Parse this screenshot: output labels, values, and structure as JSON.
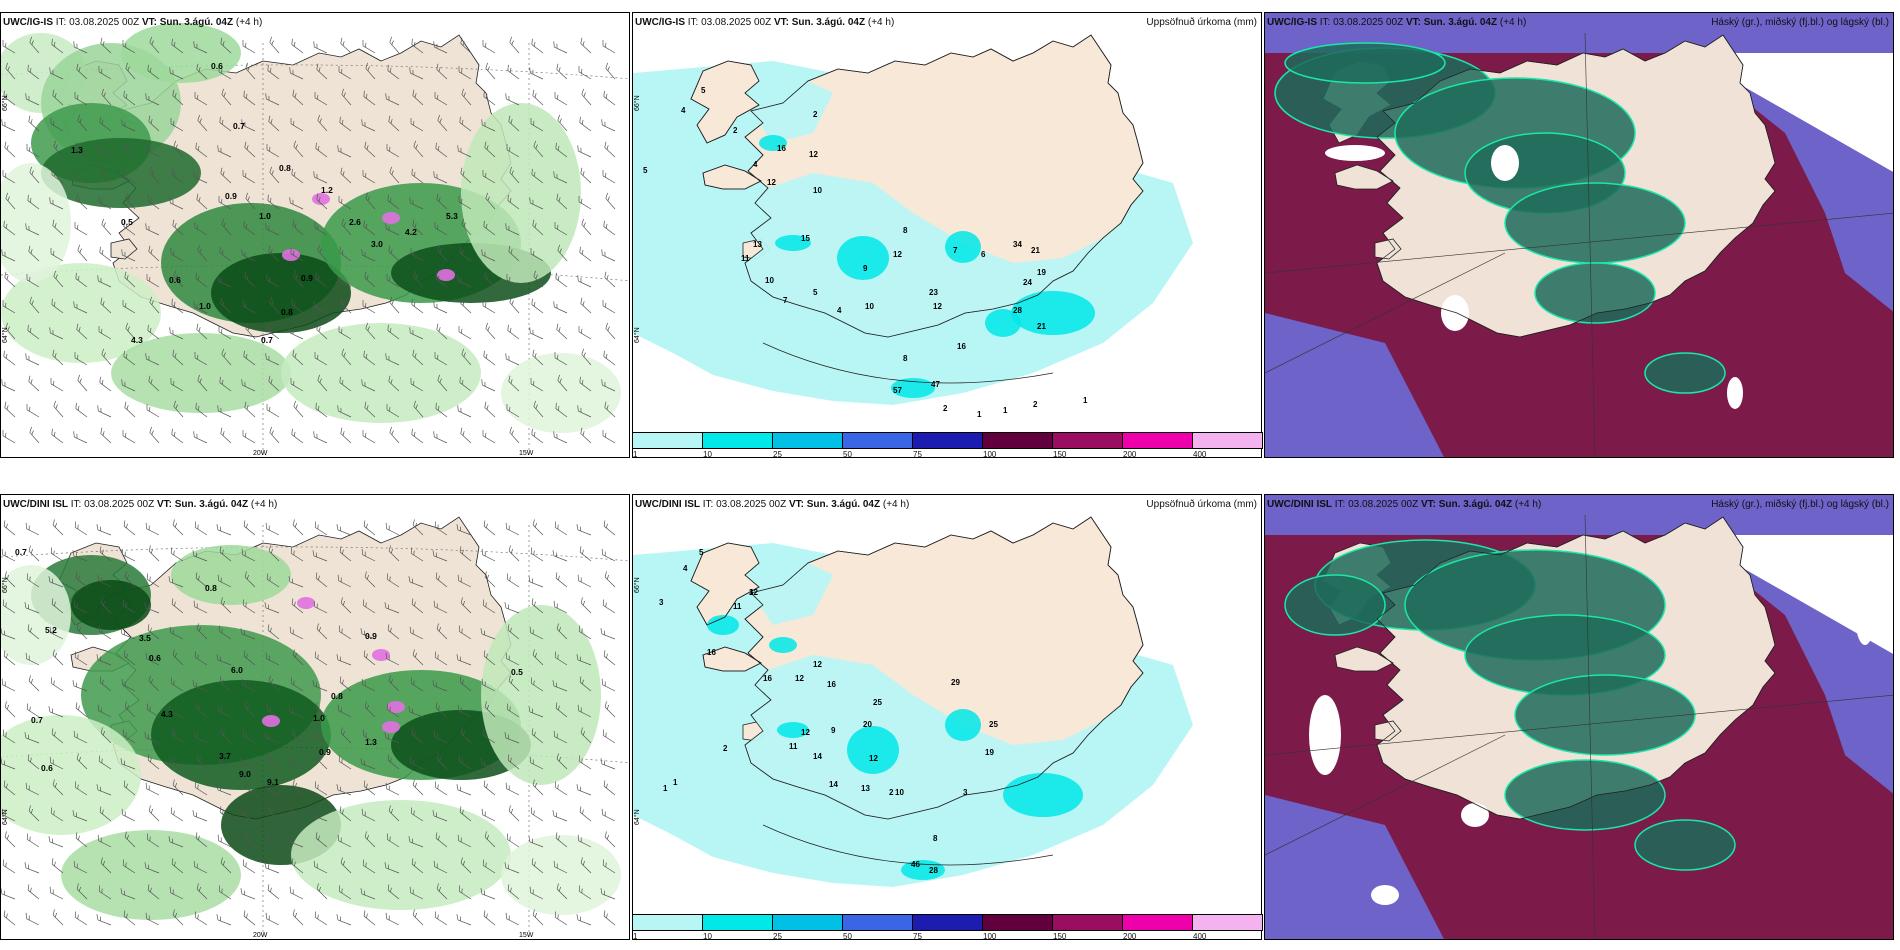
{
  "panels": [
    {
      "model": "UWC/IG-IS",
      "it": "IT: 03.08.2025 00Z",
      "vt_label": "VT:",
      "vt": "Sun. 3.ágú. 04Z",
      "lead": "(+4 h)",
      "variable": ""
    },
    {
      "model": "UWC/IG-IS",
      "it": "IT: 03.08.2025 00Z",
      "vt_label": "VT:",
      "vt": "Sun. 3.ágú. 04Z",
      "lead": "(+4 h)",
      "variable": "Uppsöfnuð úrkoma (mm)"
    },
    {
      "model": "UWC/IG-IS",
      "it": "IT: 03.08.2025 00Z",
      "vt_label": "VT:",
      "vt": "Sun. 3.ágú. 04Z",
      "lead": "(+4 h)",
      "variable": "Háský (gr.), miðský (fj.bl.) og lágský (bl.)"
    },
    {
      "model": "UWC/DINI ISL",
      "it": "IT: 03.08.2025 00Z",
      "vt_label": "VT:",
      "vt": "Sun. 3.ágú. 04Z",
      "lead": "(+4 h)",
      "variable": ""
    },
    {
      "model": "UWC/DINI ISL",
      "it": "IT: 03.08.2025 00Z",
      "vt_label": "VT:",
      "vt": "Sun. 3.ágú. 04Z",
      "lead": "(+4 h)",
      "variable": "Uppsöfnuð úrkoma (mm)"
    },
    {
      "model": "UWC/DINI ISL",
      "it": "IT: 03.08.2025 00Z",
      "vt_label": "VT:",
      "vt": "Sun. 3.ágú. 04Z",
      "lead": "(+4 h)",
      "variable": "Háský (gr.), miðský (fj.bl.) og lágský (bl.)"
    }
  ],
  "axis_labels": {
    "lat_66": "66°N",
    "lat_64": "64°N",
    "lon_20": "20W",
    "lon_15": "15W"
  },
  "legend": {
    "labels": [
      "1",
      "10",
      "25",
      "50",
      "75",
      "100",
      "150",
      "200",
      "400"
    ],
    "colors": [
      "#b8f6f6",
      "#00e8e8",
      "#00c0e6",
      "#3a66e6",
      "#1c1cb0",
      "#62003e",
      "#9a0e62",
      "#ee00aa",
      "#f4b2ee"
    ]
  },
  "precip_labels_top": [
    "5",
    "4",
    "5",
    "2",
    "2",
    "4",
    "16",
    "12",
    "12",
    "10",
    "15",
    "13",
    "11",
    "10",
    "7",
    "5",
    "4",
    "10",
    "12",
    "9",
    "8",
    "7",
    "6",
    "34",
    "21",
    "19",
    "24",
    "28",
    "21",
    "16",
    "23",
    "12",
    "8",
    "47",
    "57",
    "2",
    "1",
    "1",
    "2",
    "1"
  ],
  "precip_labels_bottom": [
    "5",
    "4",
    "3",
    "16",
    "12",
    "11",
    "12",
    "16",
    "16",
    "12",
    "12",
    "14",
    "14",
    "25",
    "20",
    "29",
    "25",
    "19",
    "13",
    "11",
    "9",
    "12",
    "10",
    "46",
    "28",
    "8",
    "3",
    "2",
    "1",
    "1",
    "2",
    "3"
  ],
  "wind_labels_top": [
    "0.6",
    "0.7",
    "0.8",
    "0.9",
    "1.0",
    "1.2",
    "2.6",
    "4.2",
    "5.3",
    "3.0",
    "0.9",
    "0.8",
    "0.7",
    "1.0",
    "0.6",
    "0.5",
    "4.3",
    "1.3"
  ],
  "wind_labels_bottom": [
    "0.7",
    "0.8",
    "0.6",
    "4.3",
    "5.2",
    "3.5",
    "9.0",
    "9.1",
    "0.9",
    "1.0",
    "0.8",
    "0.5",
    "0.7",
    "3.7",
    "6.0",
    "0.6",
    "0.9",
    "1.3"
  ]
}
